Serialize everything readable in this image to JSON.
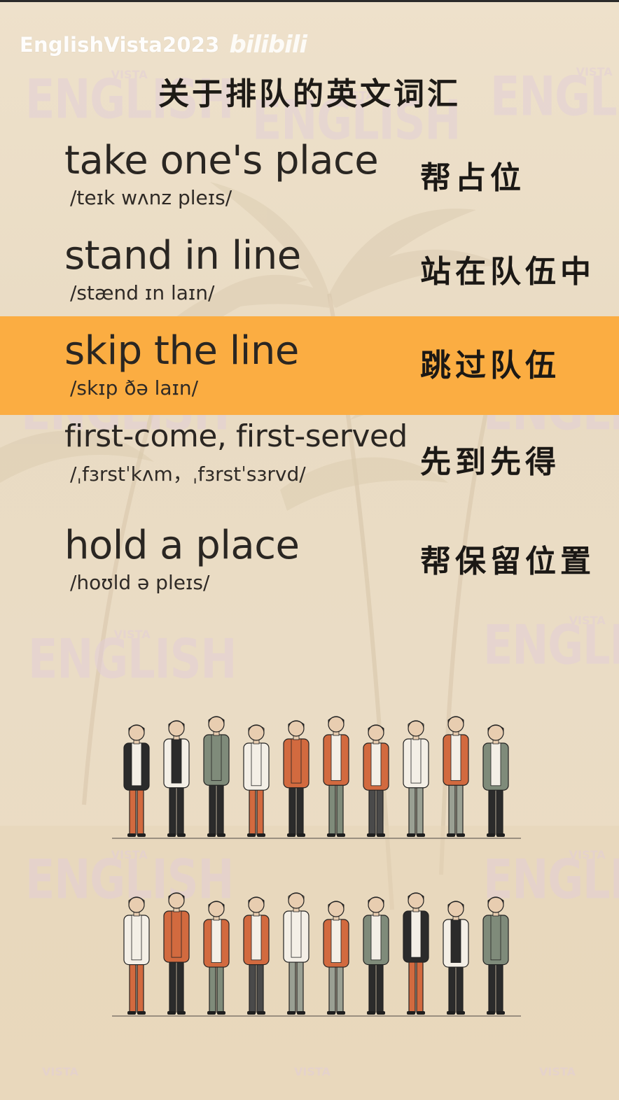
{
  "watermark": {
    "handle": "EnglishVista2023",
    "platform": "bilibili"
  },
  "background_watermark": {
    "line1": "VISTA",
    "line2": "ENGLISH"
  },
  "title": "关于排队的英文词汇",
  "vocabulary": [
    {
      "term": "take one's place",
      "ipa": "/teɪk wʌnz pleɪs/",
      "chinese": "帮占位",
      "highlighted": false
    },
    {
      "term": "stand in line",
      "ipa": "/stænd ɪn laɪn/",
      "chinese": "站在队伍中",
      "highlighted": false
    },
    {
      "term": "skip the line",
      "ipa": "/skɪp ðə laɪn/",
      "chinese": "跳过队伍",
      "highlighted": true
    },
    {
      "term": "first-come, first-served",
      "ipa": "/ˌfɜrstˈkʌm，ˌfɜrstˈsɜrvd/",
      "chinese": "先到先得",
      "highlighted": false
    },
    {
      "term": "hold a place",
      "ipa": "/hoʊld ə pleɪs/",
      "chinese": "帮保留位置",
      "highlighted": false
    }
  ],
  "colors": {
    "highlight": "#fbad42",
    "background": "#efe3cf",
    "text": "#2a2622"
  },
  "illustration": {
    "description_icon": "people-queue-illustration",
    "rows": 2,
    "people_per_row": 10
  }
}
